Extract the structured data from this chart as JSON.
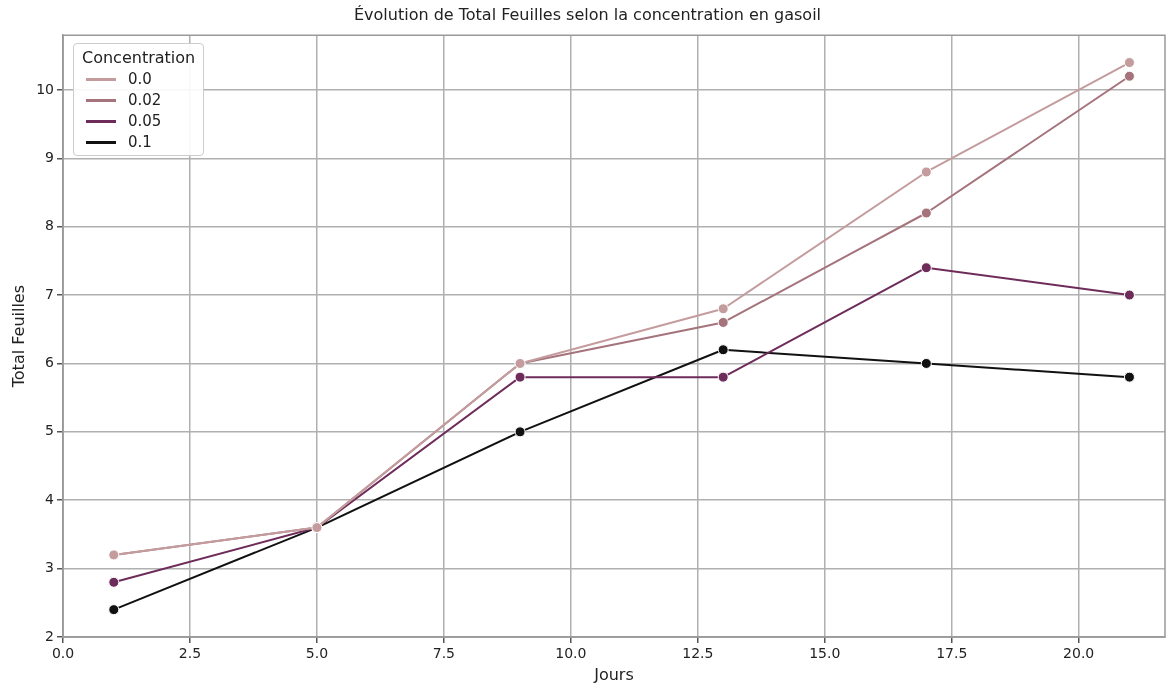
{
  "chart_data": {
    "type": "line",
    "title": "Évolution de Total Feuilles selon la concentration en gasoil",
    "xlabel": "Jours",
    "ylabel": "Total Feuilles",
    "legend_title": "Concentration",
    "x": [
      1,
      5,
      9,
      13,
      17,
      21
    ],
    "series": [
      {
        "name": "0.0",
        "color": "#c49c9e",
        "values": [
          3.2,
          3.6,
          6.0,
          6.8,
          8.8,
          10.4
        ]
      },
      {
        "name": "0.02",
        "color": "#a5737c",
        "values": [
          3.2,
          3.6,
          6.0,
          6.6,
          8.2,
          10.2
        ]
      },
      {
        "name": "0.05",
        "color": "#6e2c5a",
        "values": [
          2.8,
          3.6,
          5.8,
          5.8,
          7.4,
          7.0
        ]
      },
      {
        "name": "0.1",
        "color": "#111111",
        "values": [
          2.4,
          3.6,
          5.0,
          6.2,
          6.0,
          5.8
        ]
      }
    ],
    "xlim": [
      0,
      21.7
    ],
    "xticks": [
      {
        "value": 0,
        "label": "0.0"
      },
      {
        "value": 2.5,
        "label": "2.5"
      },
      {
        "value": 5,
        "label": "5.0"
      },
      {
        "value": 7.5,
        "label": "7.5"
      },
      {
        "value": 10,
        "label": "10.0"
      },
      {
        "value": 12.5,
        "label": "12.5"
      },
      {
        "value": 15,
        "label": "15.0"
      },
      {
        "value": 17.5,
        "label": "17.5"
      },
      {
        "value": 20,
        "label": "20.0"
      }
    ],
    "ylim": [
      2,
      10.8
    ],
    "yticks": [
      2,
      3,
      4,
      5,
      6,
      7,
      8,
      9,
      10
    ],
    "grid": true,
    "legend": "top left",
    "marker": "circle",
    "line_style": "solid"
  }
}
